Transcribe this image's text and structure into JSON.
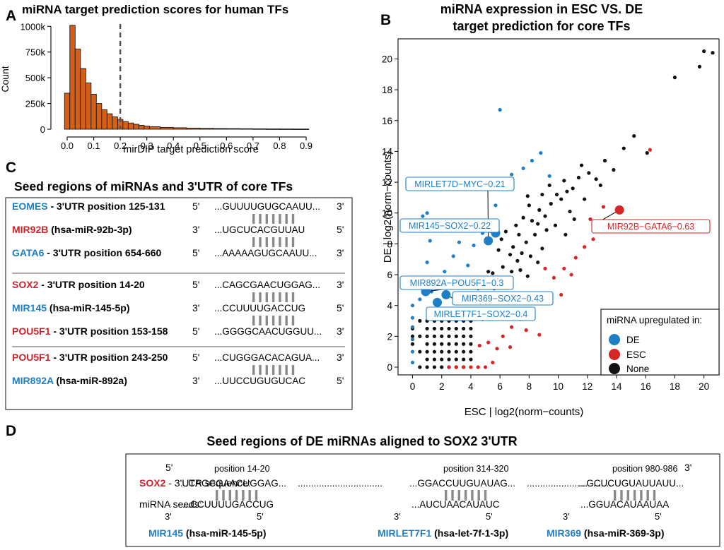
{
  "colors": {
    "bar": "#d45f16",
    "de": "#1f7fc4",
    "esc": "#d62626",
    "none": "#111111",
    "gene_blue": "#1f7fc4",
    "gene_red": "#c8262b",
    "dash": "#555555"
  },
  "chart_data": [
    {
      "panel": "A",
      "type": "bar",
      "title": "miRNA target prediction scores for human TFs",
      "xlabel": "mirDIP target prediction score",
      "ylabel": "Count",
      "xlim": [
        -0.04,
        0.94
      ],
      "ylim": [
        0,
        1050000
      ],
      "xticks": [
        "0.0",
        "0.1",
        "0.2",
        "0.3",
        "0.4",
        "0.5",
        "0.6",
        "0.7",
        "0.8",
        "0.9"
      ],
      "yticks": [
        "0",
        "250k",
        "500k",
        "750k",
        "1000k"
      ],
      "bin_width": 0.02,
      "bin_starts": [
        -0.01,
        0.01,
        0.03,
        0.05,
        0.07,
        0.09,
        0.11,
        0.13,
        0.15,
        0.17,
        0.19,
        0.21,
        0.23,
        0.25,
        0.27,
        0.29,
        0.31,
        0.35,
        0.4,
        0.45,
        0.5,
        0.55,
        0.6,
        0.65,
        0.7,
        0.75,
        0.8,
        0.85
      ],
      "bin_ends": [
        0.01,
        0.03,
        0.05,
        0.07,
        0.09,
        0.11,
        0.13,
        0.15,
        0.17,
        0.19,
        0.21,
        0.23,
        0.25,
        0.27,
        0.29,
        0.31,
        0.35,
        0.4,
        0.45,
        0.5,
        0.55,
        0.6,
        0.65,
        0.7,
        0.75,
        0.8,
        0.85,
        0.91
      ],
      "values": [
        350000,
        1010000,
        780000,
        590000,
        450000,
        340000,
        250000,
        190000,
        150000,
        120000,
        95000,
        75000,
        60000,
        48000,
        38000,
        30000,
        24000,
        18000,
        14000,
        11000,
        9000,
        7000,
        6000,
        5000,
        4000,
        3000,
        2500,
        2000
      ],
      "threshold": 0.2
    },
    {
      "panel": "B",
      "type": "scatter",
      "title_lines": [
        "miRNA expression in ESC VS. DE",
        "target prediction for core TFs"
      ],
      "xlabel": "ESC | log2(norm−counts)",
      "ylabel": "DE | log2(norm−counts)",
      "xlim": [
        -1,
        21.5
      ],
      "ylim": [
        -1,
        21.5
      ],
      "xticks": [
        0,
        2,
        4,
        6,
        8,
        10,
        12,
        14,
        16,
        18,
        20
      ],
      "yticks": [
        0,
        2,
        4,
        6,
        8,
        10,
        12,
        14,
        16,
        18,
        20
      ],
      "legend": {
        "title": "miRNA upregulated in:",
        "position": "bottom-right",
        "items": [
          "DE",
          "ESC",
          "None"
        ]
      },
      "series": [
        {
          "name": "None",
          "points": [
            [
              0,
              1.5
            ],
            [
              0,
              2
            ],
            [
              0,
              2.5
            ],
            [
              0.5,
              0
            ],
            [
              0.5,
              1
            ],
            [
              0.5,
              2
            ],
            [
              0.5,
              3
            ],
            [
              1,
              0
            ],
            [
              1,
              0.5
            ],
            [
              1,
              1
            ],
            [
              1,
              1.5
            ],
            [
              1,
              2
            ],
            [
              1,
              2.5
            ],
            [
              1,
              3
            ],
            [
              1.5,
              0
            ],
            [
              1.5,
              0.5
            ],
            [
              1.5,
              1
            ],
            [
              1.5,
              1.5
            ],
            [
              1.5,
              2
            ],
            [
              1.5,
              2.5
            ],
            [
              1.5,
              3
            ],
            [
              2,
              0
            ],
            [
              2,
              0.5
            ],
            [
              2,
              1
            ],
            [
              2,
              1.5
            ],
            [
              2,
              2
            ],
            [
              2,
              2.5
            ],
            [
              2,
              3
            ],
            [
              2.5,
              0
            ],
            [
              2.5,
              0.5
            ],
            [
              2.5,
              1
            ],
            [
              2.5,
              1.5
            ],
            [
              2.5,
              2
            ],
            [
              2.5,
              2.5
            ],
            [
              2.5,
              3
            ],
            [
              3,
              0
            ],
            [
              3,
              0.5
            ],
            [
              3,
              1
            ],
            [
              3,
              1.5
            ],
            [
              3,
              2
            ],
            [
              3,
              2.5
            ],
            [
              3,
              3
            ],
            [
              3.5,
              0
            ],
            [
              3.5,
              0.5
            ],
            [
              3.5,
              1
            ],
            [
              3.5,
              1.5
            ],
            [
              3.5,
              2
            ],
            [
              3.5,
              2.5
            ],
            [
              3.5,
              3
            ],
            [
              4,
              0.5
            ],
            [
              4,
              1
            ],
            [
              4,
              1.5
            ],
            [
              4,
              2
            ],
            [
              4,
              2.5
            ],
            [
              4,
              3
            ],
            [
              1.2,
              3.5
            ],
            [
              1.8,
              3.6
            ],
            [
              2.4,
              3.4
            ],
            [
              3,
              3.8
            ],
            [
              3.6,
              3.5
            ],
            [
              4.2,
              3.3
            ],
            [
              4.8,
              3.1
            ],
            [
              4.4,
              4.2
            ],
            [
              5.1,
              4.5
            ],
            [
              5.6,
              5.1
            ],
            [
              6,
              4.8
            ],
            [
              6.5,
              5.4
            ],
            [
              5.2,
              6.2
            ],
            [
              6.2,
              6.5
            ],
            [
              6.8,
              6.2
            ],
            [
              7.2,
              6.9
            ],
            [
              7.5,
              7.4
            ],
            [
              6.9,
              7.8
            ],
            [
              7.8,
              8.1
            ],
            [
              8.1,
              7.2
            ],
            [
              8.4,
              8.6
            ],
            [
              6.4,
              8.8
            ],
            [
              7.1,
              9.2
            ],
            [
              7.6,
              9.7
            ],
            [
              8.2,
              9.5
            ],
            [
              8.7,
              10.2
            ],
            [
              9.1,
              9.8
            ],
            [
              9.5,
              10.6
            ],
            [
              9.8,
              9.2
            ],
            [
              10.2,
              10.9
            ],
            [
              10.6,
              11.4
            ],
            [
              8.9,
              11.2
            ],
            [
              9.4,
              11.8
            ],
            [
              10.4,
              12.1
            ],
            [
              11,
              11.6
            ],
            [
              11.4,
              12.3
            ],
            [
              11.8,
              10.9
            ],
            [
              12.1,
              12.6
            ],
            [
              10.8,
              10.1
            ],
            [
              9.2,
              8.9
            ],
            [
              8.6,
              9.3
            ],
            [
              7.3,
              8.6
            ],
            [
              6.7,
              7.3
            ],
            [
              5.9,
              7.6
            ],
            [
              5.5,
              6.1
            ],
            [
              4.9,
              5.6
            ],
            [
              5.3,
              4.2
            ],
            [
              4.6,
              4.8
            ],
            [
              12.6,
              12.2
            ],
            [
              13.2,
              13.4
            ],
            [
              13.8,
              12.8
            ],
            [
              14.5,
              14.2
            ],
            [
              15.2,
              15
            ],
            [
              16.1,
              13.9
            ],
            [
              12.9,
              11.8
            ],
            [
              11.6,
              13.1
            ],
            [
              18,
              18.8
            ],
            [
              19.7,
              19.5
            ],
            [
              20,
              20.5
            ],
            [
              20.6,
              20.4
            ],
            [
              8,
              10.5
            ],
            [
              7.4,
              6.3
            ],
            [
              8.9,
              7.7
            ],
            [
              6.1,
              8.3
            ],
            [
              5.6,
              9.4
            ],
            [
              7.9,
              11.1
            ],
            [
              9.9,
              11.2
            ],
            [
              10.5,
              8.6
            ],
            [
              11.1,
              9.6
            ],
            [
              6.6,
              5.6
            ],
            [
              6.4,
              4.6
            ],
            [
              5.8,
              3.6
            ],
            [
              4.9,
              3.8
            ],
            [
              4.5,
              5.1
            ],
            [
              7.9,
              5.9
            ],
            [
              8.6,
              6.8
            ]
          ]
        },
        {
          "name": "DE",
          "points": [
            [
              0,
              0.3
            ],
            [
              0,
              1
            ],
            [
              0,
              1.8
            ],
            [
              0,
              2.6
            ],
            [
              0,
              3.2
            ],
            [
              0,
              4
            ],
            [
              0.5,
              4.4
            ],
            [
              0.8,
              5.6
            ],
            [
              1,
              6.8
            ],
            [
              1.2,
              8.2
            ],
            [
              1.5,
              9
            ],
            [
              0.7,
              9.8
            ],
            [
              1,
              10
            ],
            [
              2.8,
              7.2
            ],
            [
              3.8,
              6.6
            ],
            [
              4.2,
              7.9
            ],
            [
              4.6,
              9.3
            ],
            [
              5.3,
              11.7
            ],
            [
              5.7,
              10.5
            ],
            [
              6.3,
              11.8
            ],
            [
              6.8,
              12.5
            ],
            [
              7.6,
              12.9
            ],
            [
              8.2,
              13.4
            ],
            [
              8.8,
              13.9
            ],
            [
              9.4,
              12.4
            ],
            [
              6,
              16.7
            ],
            [
              4.8,
              8.7
            ],
            [
              3.2,
              8.1
            ],
            [
              2.2,
              6.2
            ],
            [
              2.8,
              5.4
            ],
            [
              1.3,
              4.9
            ]
          ]
        },
        {
          "name": "ESC",
          "points": [
            [
              2.5,
              0
            ],
            [
              3,
              0
            ],
            [
              3.5,
              0
            ],
            [
              4,
              0
            ],
            [
              4.5,
              0
            ],
            [
              5,
              0
            ],
            [
              5.5,
              0.3
            ],
            [
              4.6,
              1.4
            ],
            [
              5.2,
              1.6
            ],
            [
              5.8,
              1.2
            ],
            [
              6.2,
              2
            ],
            [
              6.8,
              2.6
            ],
            [
              7.4,
              3.1
            ],
            [
              7.8,
              2.4
            ],
            [
              8.2,
              3.6
            ],
            [
              8.6,
              4.2
            ],
            [
              9.2,
              4.8
            ],
            [
              9.7,
              5.8
            ],
            [
              10.4,
              6.4
            ],
            [
              11.2,
              7.1
            ],
            [
              11.8,
              7.8
            ],
            [
              12.4,
              8.3
            ],
            [
              13.1,
              10.4
            ],
            [
              14.8,
              9.2
            ],
            [
              16.3,
              14.1
            ],
            [
              10.2,
              4.7
            ],
            [
              8.7,
              2.1
            ],
            [
              7.2,
              4.3
            ],
            [
              6.7,
              1.3
            ],
            [
              9.1,
              6.4
            ],
            [
              12.2,
              9.6
            ],
            [
              10.9,
              6
            ]
          ]
        }
      ],
      "highlights": [
        {
          "label": "MIRLET7D−MYC−0.21",
          "group": "DE",
          "x": 5.2,
          "y": 8.2
        },
        {
          "label": "MIR145−SOX2−0.22",
          "group": "DE",
          "x": 5.7,
          "y": 8.7
        },
        {
          "label": "MIR892A−POU5F1−0.3",
          "group": "DE",
          "x": 0.9,
          "y": 4.9
        },
        {
          "label": "MIR369−SOX2−0.43",
          "group": "DE",
          "x": 2.3,
          "y": 4.7
        },
        {
          "label": "MIRLET7F1−SOX2−0.4",
          "group": "DE",
          "x": 1.7,
          "y": 4.2
        },
        {
          "label": "MIR92B−GATA6−0.63",
          "group": "ESC",
          "x": 14.2,
          "y": 10.2
        }
      ]
    }
  ],
  "panel_labels": [
    "A",
    "B",
    "C",
    "D"
  ],
  "panel_c": {
    "title": "Seed regions of miRNAs and 3'UTR of core TFs",
    "groups": [
      {
        "rows": [
          {
            "gene": "EOMES",
            "gene_color": "blue",
            "desc": " - 3'UTR position 125-131",
            "end_left": "5'",
            "seq": "...GUUUUGUGCAAUU...",
            "end_right": "3'"
          },
          {
            "gene": "MIR92B",
            "gene_color": "red",
            "desc": " (hsa-miR-92b-3p)",
            "end_left": "3'",
            "seq": "...UGCUCACGUUAU",
            "end_right": "5'"
          },
          {
            "gene": "GATA6",
            "gene_color": "blue",
            "desc": " - 3'UTR position 654-660",
            "end_left": "5'",
            "seq": "...AAAAAGUGCAAUU...",
            "end_right": "3'"
          }
        ]
      },
      {
        "rows": [
          {
            "gene": "SOX2",
            "gene_color": "red",
            "desc": " - 3'UTR position 14-20",
            "end_left": "5'",
            "seq": "...CAGCGAACUGGAG...",
            "end_right": "3'"
          },
          {
            "gene": "MIR145",
            "gene_color": "blue",
            "desc": " (hsa-miR-145-5p)",
            "end_left": "3'",
            "seq": "...CCUUUUGACCUG",
            "end_right": "5'"
          },
          {
            "gene": "POU5F1",
            "gene_color": "red",
            "desc": " - 3'UTR position 153-158",
            "end_left": "5'",
            "seq": "...GGGGCAACUGGUU...",
            "end_right": "3'"
          }
        ]
      },
      {
        "rows": [
          {
            "gene": "POU5F1",
            "gene_color": "red",
            "desc": " - 3'UTR position 243-250",
            "end_left": "5'",
            "seq": "...CUGGGACACAGUA...",
            "end_right": "3'"
          },
          {
            "gene": "MIR892A",
            "gene_color": "blue",
            "desc": " (hsa-miR-892a)",
            "end_left": "3'",
            "seq": "...UUCCUGUGUCAC",
            "end_right": "5'"
          }
        ]
      }
    ]
  },
  "panel_d": {
    "title": "Seed regions of DE miRNAs aligned to SOX2 3'UTR",
    "gene": "SOX2",
    "gene_suffix": " - 3'UTR sequence:",
    "seeds_label": "miRNA seeds:",
    "utr_5": "5'",
    "utr_3": "3'",
    "sites": [
      {
        "position": "position 14-20",
        "utr": "...CAGCGAACUGGAG...",
        "seed": "...CCUUUUGACCUG",
        "mirna": "MIR145",
        "mature": " (hsa-miR-145-5p)",
        "end_left": "3'",
        "end_right": "5'"
      },
      {
        "position": "position 314-320",
        "utr": "...GGACCUUGUAUAG...",
        "seed": "...AUCUAACAUAUC",
        "mirna": "MIRLET7F1",
        "mature": " (hsa-let-7f-1-3p)",
        "end_left": "3'",
        "end_right": "5'"
      },
      {
        "position": "position 980-986",
        "utr": "...GCUCUGUAUUAUU...",
        "seed": "...GGUACAUAAUAA",
        "mirna": "MIR369",
        "mature": " (hsa-miR-369-3p)",
        "end_left": "3'",
        "end_right": "5'"
      }
    ],
    "dots": "................................"
  }
}
